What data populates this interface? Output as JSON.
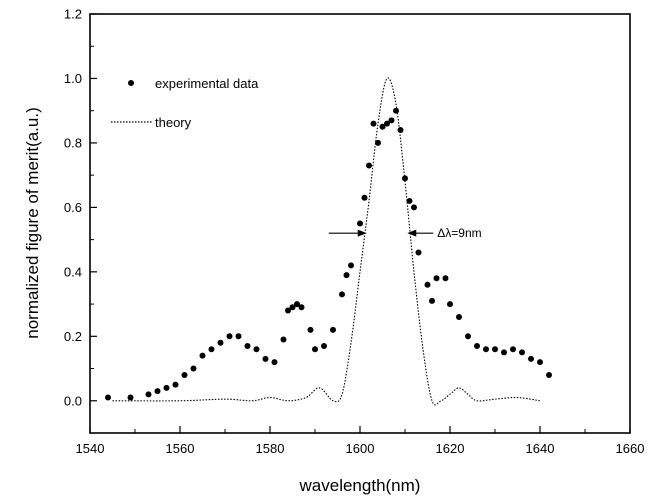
{
  "chart_data": {
    "type": "scatter",
    "xlabel": "wavelength(nm)",
    "ylabel": "normalized figure of merit(a.u.)",
    "xlim": [
      1540,
      1660
    ],
    "ylim": [
      -0.1,
      1.2
    ],
    "x_ticks": [
      "1540",
      "1560",
      "1580",
      "1600",
      "1620",
      "1640",
      "1660"
    ],
    "y_ticks": [
      "0.0",
      "0.2",
      "0.4",
      "0.6",
      "0.8",
      "1.0",
      "1.2"
    ],
    "grid": false,
    "legend_position": "top-left",
    "annotation": "Δλ=9nm",
    "annotation_arrows": {
      "left_x": 1601.5,
      "right_x": 1610.5,
      "y": 0.52
    },
    "series": [
      {
        "name": "experimental data",
        "style": "markers",
        "color": "#000000",
        "points": [
          [
            1544,
            0.01
          ],
          [
            1549,
            0.01
          ],
          [
            1553,
            0.02
          ],
          [
            1555,
            0.03
          ],
          [
            1557,
            0.04
          ],
          [
            1559,
            0.05
          ],
          [
            1561,
            0.08
          ],
          [
            1563,
            0.1
          ],
          [
            1565,
            0.14
          ],
          [
            1567,
            0.16
          ],
          [
            1569,
            0.18
          ],
          [
            1571,
            0.2
          ],
          [
            1573,
            0.2
          ],
          [
            1575,
            0.17
          ],
          [
            1577,
            0.16
          ],
          [
            1579,
            0.13
          ],
          [
            1581,
            0.12
          ],
          [
            1583,
            0.19
          ],
          [
            1584,
            0.28
          ],
          [
            1585,
            0.29
          ],
          [
            1586,
            0.3
          ],
          [
            1587,
            0.29
          ],
          [
            1589,
            0.22
          ],
          [
            1590,
            0.16
          ],
          [
            1592,
            0.17
          ],
          [
            1594,
            0.22
          ],
          [
            1596,
            0.33
          ],
          [
            1597,
            0.39
          ],
          [
            1598,
            0.42
          ],
          [
            1600,
            0.55
          ],
          [
            1601,
            0.63
          ],
          [
            1602,
            0.73
          ],
          [
            1603,
            0.86
          ],
          [
            1604,
            0.8
          ],
          [
            1605,
            0.85
          ],
          [
            1606,
            0.86
          ],
          [
            1607,
            0.87
          ],
          [
            1608,
            0.9
          ],
          [
            1609,
            0.84
          ],
          [
            1610,
            0.69
          ],
          [
            1611,
            0.62
          ],
          [
            1612,
            0.6
          ],
          [
            1613,
            0.46
          ],
          [
            1615,
            0.36
          ],
          [
            1616,
            0.31
          ],
          [
            1617,
            0.38
          ],
          [
            1619,
            0.38
          ],
          [
            1620,
            0.3
          ],
          [
            1622,
            0.26
          ],
          [
            1624,
            0.2
          ],
          [
            1626,
            0.17
          ],
          [
            1628,
            0.16
          ],
          [
            1630,
            0.16
          ],
          [
            1632,
            0.15
          ],
          [
            1634,
            0.16
          ],
          [
            1636,
            0.15
          ],
          [
            1638,
            0.13
          ],
          [
            1640,
            0.12
          ],
          [
            1642,
            0.08
          ]
        ]
      },
      {
        "name": "theory",
        "style": "dotted-line",
        "color": "#000000",
        "points": [
          [
            1545,
            0.0
          ],
          [
            1560,
            0.0
          ],
          [
            1570,
            0.005
          ],
          [
            1576,
            0.0
          ],
          [
            1580,
            0.01
          ],
          [
            1584,
            0.0
          ],
          [
            1588,
            0.01
          ],
          [
            1591,
            0.04
          ],
          [
            1594,
            0.0
          ],
          [
            1596,
            0.02
          ],
          [
            1598,
            0.18
          ],
          [
            1600,
            0.4
          ],
          [
            1602,
            0.62
          ],
          [
            1604,
            0.86
          ],
          [
            1606,
            1.0
          ],
          [
            1608,
            0.92
          ],
          [
            1610,
            0.68
          ],
          [
            1612,
            0.4
          ],
          [
            1614,
            0.16
          ],
          [
            1616,
            0.0
          ],
          [
            1618,
            0.0
          ],
          [
            1620,
            0.02
          ],
          [
            1622,
            0.04
          ],
          [
            1624,
            0.02
          ],
          [
            1626,
            0.0
          ],
          [
            1630,
            0.005
          ],
          [
            1635,
            0.01
          ],
          [
            1640,
            0.0
          ]
        ]
      }
    ]
  }
}
